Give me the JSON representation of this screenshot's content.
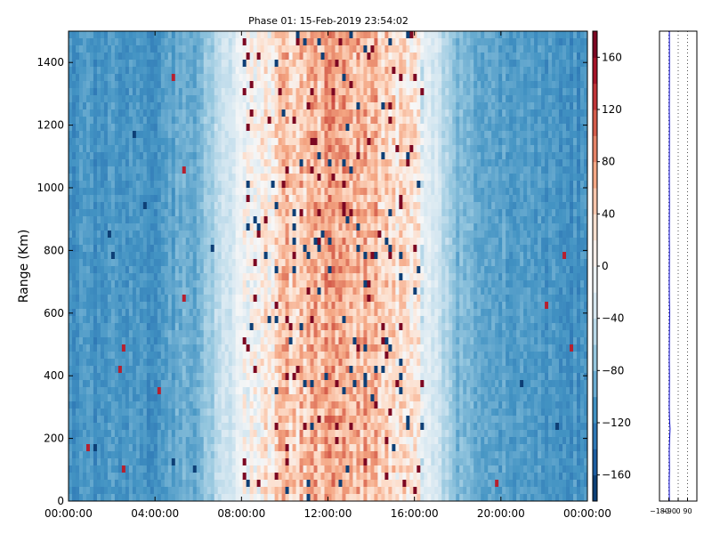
{
  "chart_data": [
    {
      "type": "heatmap",
      "title": "Phase 01: 15-Feb-2019 23:54:02",
      "xlabel": "",
      "ylabel": "Range (Km)",
      "x_ticks": [
        "00:00:00",
        "04:00:00",
        "08:00:00",
        "12:00:00",
        "16:00:00",
        "20:00:00",
        "00:00:00"
      ],
      "x_range_hours": [
        0,
        24
      ],
      "y_ticks": [
        0,
        200,
        400,
        600,
        800,
        1000,
        1200,
        1400
      ],
      "ylim": [
        0,
        1500
      ],
      "colorbar": {
        "colormap": "RdBu_r",
        "range": [
          -180,
          180
        ],
        "ticks": [
          -160,
          -120,
          -80,
          -40,
          0,
          40,
          80,
          120,
          160
        ],
        "tick_labels": [
          "−160",
          "−120",
          "−80",
          "−40",
          "0",
          "40",
          "80",
          "120",
          "160"
        ]
      },
      "phase_profile_hours": [
        [
          0,
          -110
        ],
        [
          4,
          -105
        ],
        [
          6,
          -85
        ],
        [
          8,
          -10
        ],
        [
          10,
          40
        ],
        [
          12,
          70
        ],
        [
          14,
          60
        ],
        [
          16,
          10
        ],
        [
          18,
          -80
        ],
        [
          20,
          -100
        ],
        [
          24,
          -110
        ]
      ]
    },
    {
      "type": "line",
      "xlim": [
        -180,
        180
      ],
      "x_ticks": [
        -180,
        -90,
        0,
        90
      ],
      "x_tick_labels": [
        "−180",
        "−90",
        "0",
        "90"
      ],
      "ylim": [
        0,
        1500
      ],
      "grid": "vertical dotted",
      "series": [
        {
          "color": "#0000cc",
          "x": [
            -85,
            -87,
            -84,
            -86,
            -82,
            -78,
            -83,
            -86,
            -85,
            -84,
            -86,
            -85,
            -84,
            -82,
            -85,
            -86,
            -85,
            -84,
            -86,
            -85,
            -84,
            -85,
            -86,
            -85,
            -84,
            -86,
            -85,
            -84,
            -85
          ],
          "y": [
            0,
            60,
            100,
            160,
            200,
            230,
            260,
            300,
            350,
            400,
            450,
            500,
            550,
            600,
            650,
            700,
            750,
            800,
            850,
            900,
            950,
            1000,
            1050,
            1100,
            1200,
            1250,
            1300,
            1400,
            1500
          ]
        }
      ]
    }
  ],
  "colors": {
    "profile_line": "#0000cc",
    "frame": "#000000"
  }
}
